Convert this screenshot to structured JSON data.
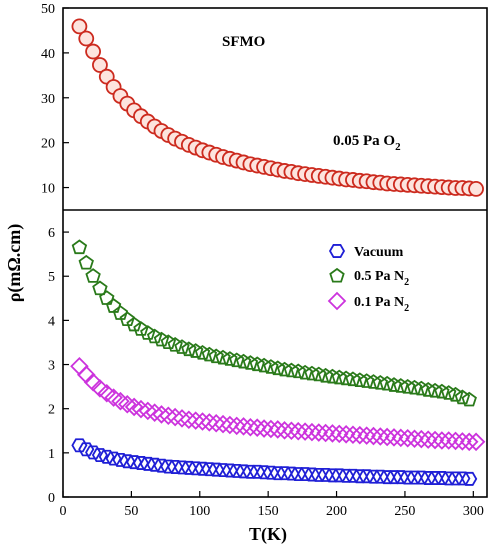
{
  "chart_data": [
    {
      "type": "scatter",
      "panel": "top",
      "annotations": [
        "SFMO",
        "0.05 Pa O",
        "2"
      ],
      "xlim": [
        0,
        310
      ],
      "ylim": [
        5,
        50
      ],
      "yticks": [
        10,
        20,
        30,
        40,
        50
      ],
      "series": [
        {
          "name": "0.05 Pa O2",
          "marker": "circle",
          "color": "#cc2a1e",
          "x": [
            12,
            17,
            22,
            27,
            32,
            37,
            42,
            47,
            52,
            57,
            62,
            67,
            72,
            77,
            82,
            87,
            92,
            97,
            102,
            107,
            112,
            117,
            122,
            127,
            132,
            137,
            142,
            147,
            152,
            157,
            162,
            167,
            172,
            177,
            182,
            187,
            192,
            197,
            202,
            207,
            212,
            217,
            222,
            227,
            232,
            237,
            242,
            247,
            252,
            257,
            262,
            267,
            272,
            277,
            282,
            287,
            292,
            297,
            302
          ],
          "y": [
            45.9,
            43.2,
            40.3,
            37.3,
            34.7,
            32.4,
            30.4,
            28.7,
            27.2,
            25.9,
            24.7,
            23.6,
            22.6,
            21.7,
            20.9,
            20.2,
            19.5,
            18.9,
            18.3,
            17.8,
            17.3,
            16.8,
            16.4,
            16.0,
            15.6,
            15.2,
            14.9,
            14.6,
            14.3,
            14.0,
            13.7,
            13.5,
            13.2,
            13.0,
            12.8,
            12.6,
            12.4,
            12.2,
            12.0,
            11.8,
            11.7,
            11.5,
            11.4,
            11.2,
            11.1,
            10.9,
            10.8,
            10.7,
            10.6,
            10.5,
            10.4,
            10.3,
            10.2,
            10.1,
            10.0,
            9.9,
            9.9,
            9.8,
            9.7
          ]
        }
      ]
    },
    {
      "type": "scatter",
      "panel": "bottom",
      "xlabel": "T(K)",
      "ylabel": "ρ(mΩ.cm)",
      "xlim": [
        0,
        310
      ],
      "ylim": [
        0,
        6.5
      ],
      "xticks": [
        0,
        50,
        100,
        150,
        200,
        250,
        300
      ],
      "yticks": [
        0,
        1,
        2,
        3,
        4,
        5,
        6
      ],
      "legend_position": "top-right",
      "series": [
        {
          "name": "Vacuum",
          "marker": "hexagon",
          "color": "#1f1fd6",
          "x": [
            12,
            17,
            22,
            27,
            32,
            37,
            42,
            47,
            52,
            57,
            62,
            67,
            72,
            77,
            82,
            87,
            92,
            97,
            102,
            107,
            112,
            117,
            122,
            127,
            132,
            137,
            142,
            147,
            152,
            157,
            162,
            167,
            172,
            177,
            182,
            187,
            192,
            197,
            202,
            207,
            212,
            217,
            222,
            227,
            232,
            237,
            242,
            247,
            252,
            257,
            262,
            267,
            272,
            277,
            282,
            287,
            292,
            297
          ],
          "y": [
            1.17,
            1.08,
            1.01,
            0.95,
            0.91,
            0.87,
            0.84,
            0.81,
            0.79,
            0.77,
            0.75,
            0.73,
            0.71,
            0.69,
            0.68,
            0.67,
            0.66,
            0.65,
            0.64,
            0.63,
            0.62,
            0.61,
            0.6,
            0.59,
            0.58,
            0.57,
            0.57,
            0.56,
            0.55,
            0.54,
            0.54,
            0.53,
            0.52,
            0.52,
            0.51,
            0.5,
            0.5,
            0.49,
            0.49,
            0.48,
            0.48,
            0.47,
            0.47,
            0.46,
            0.46,
            0.45,
            0.45,
            0.45,
            0.44,
            0.44,
            0.44,
            0.43,
            0.43,
            0.43,
            0.42,
            0.42,
            0.42,
            0.41
          ]
        },
        {
          "name": "0.5 Pa N",
          "name_subscript": "2",
          "marker": "pentagon",
          "color": "#2a7a1a",
          "x": [
            12,
            17,
            22,
            27,
            32,
            37,
            42,
            47,
            52,
            57,
            62,
            67,
            72,
            77,
            82,
            87,
            92,
            97,
            102,
            107,
            112,
            117,
            122,
            127,
            132,
            137,
            142,
            147,
            152,
            157,
            162,
            167,
            172,
            177,
            182,
            187,
            192,
            197,
            202,
            207,
            212,
            217,
            222,
            227,
            232,
            237,
            242,
            247,
            252,
            257,
            262,
            267,
            272,
            277,
            282,
            287,
            292,
            297
          ],
          "y": [
            5.65,
            5.3,
            5.0,
            4.72,
            4.5,
            4.32,
            4.16,
            4.02,
            3.9,
            3.8,
            3.71,
            3.63,
            3.56,
            3.5,
            3.44,
            3.39,
            3.34,
            3.3,
            3.26,
            3.22,
            3.18,
            3.15,
            3.12,
            3.09,
            3.06,
            3.03,
            3.0,
            2.97,
            2.94,
            2.91,
            2.88,
            2.86,
            2.84,
            2.81,
            2.79,
            2.77,
            2.74,
            2.72,
            2.7,
            2.68,
            2.66,
            2.64,
            2.62,
            2.6,
            2.58,
            2.56,
            2.53,
            2.51,
            2.49,
            2.47,
            2.45,
            2.42,
            2.4,
            2.38,
            2.35,
            2.31,
            2.25,
            2.2
          ]
        },
        {
          "name": "0.1 Pa N",
          "name_subscript": "2",
          "marker": "diamond",
          "color": "#cc33dd",
          "x": [
            12,
            17,
            22,
            27,
            32,
            37,
            42,
            47,
            52,
            57,
            62,
            67,
            72,
            77,
            82,
            87,
            92,
            97,
            102,
            107,
            112,
            117,
            122,
            127,
            132,
            137,
            142,
            147,
            152,
            157,
            162,
            167,
            172,
            177,
            182,
            187,
            192,
            197,
            202,
            207,
            212,
            217,
            222,
            227,
            232,
            237,
            242,
            247,
            252,
            257,
            262,
            267,
            272,
            277,
            282,
            287,
            292,
            297,
            302
          ],
          "y": [
            2.96,
            2.77,
            2.6,
            2.46,
            2.35,
            2.25,
            2.17,
            2.1,
            2.04,
            1.99,
            1.95,
            1.91,
            1.87,
            1.84,
            1.81,
            1.78,
            1.75,
            1.73,
            1.71,
            1.69,
            1.67,
            1.65,
            1.63,
            1.61,
            1.6,
            1.58,
            1.57,
            1.55,
            1.54,
            1.53,
            1.51,
            1.5,
            1.49,
            1.48,
            1.47,
            1.46,
            1.45,
            1.44,
            1.43,
            1.42,
            1.41,
            1.4,
            1.39,
            1.38,
            1.37,
            1.36,
            1.35,
            1.34,
            1.33,
            1.32,
            1.31,
            1.3,
            1.29,
            1.28,
            1.28,
            1.27,
            1.26,
            1.25,
            1.25
          ]
        }
      ]
    }
  ]
}
